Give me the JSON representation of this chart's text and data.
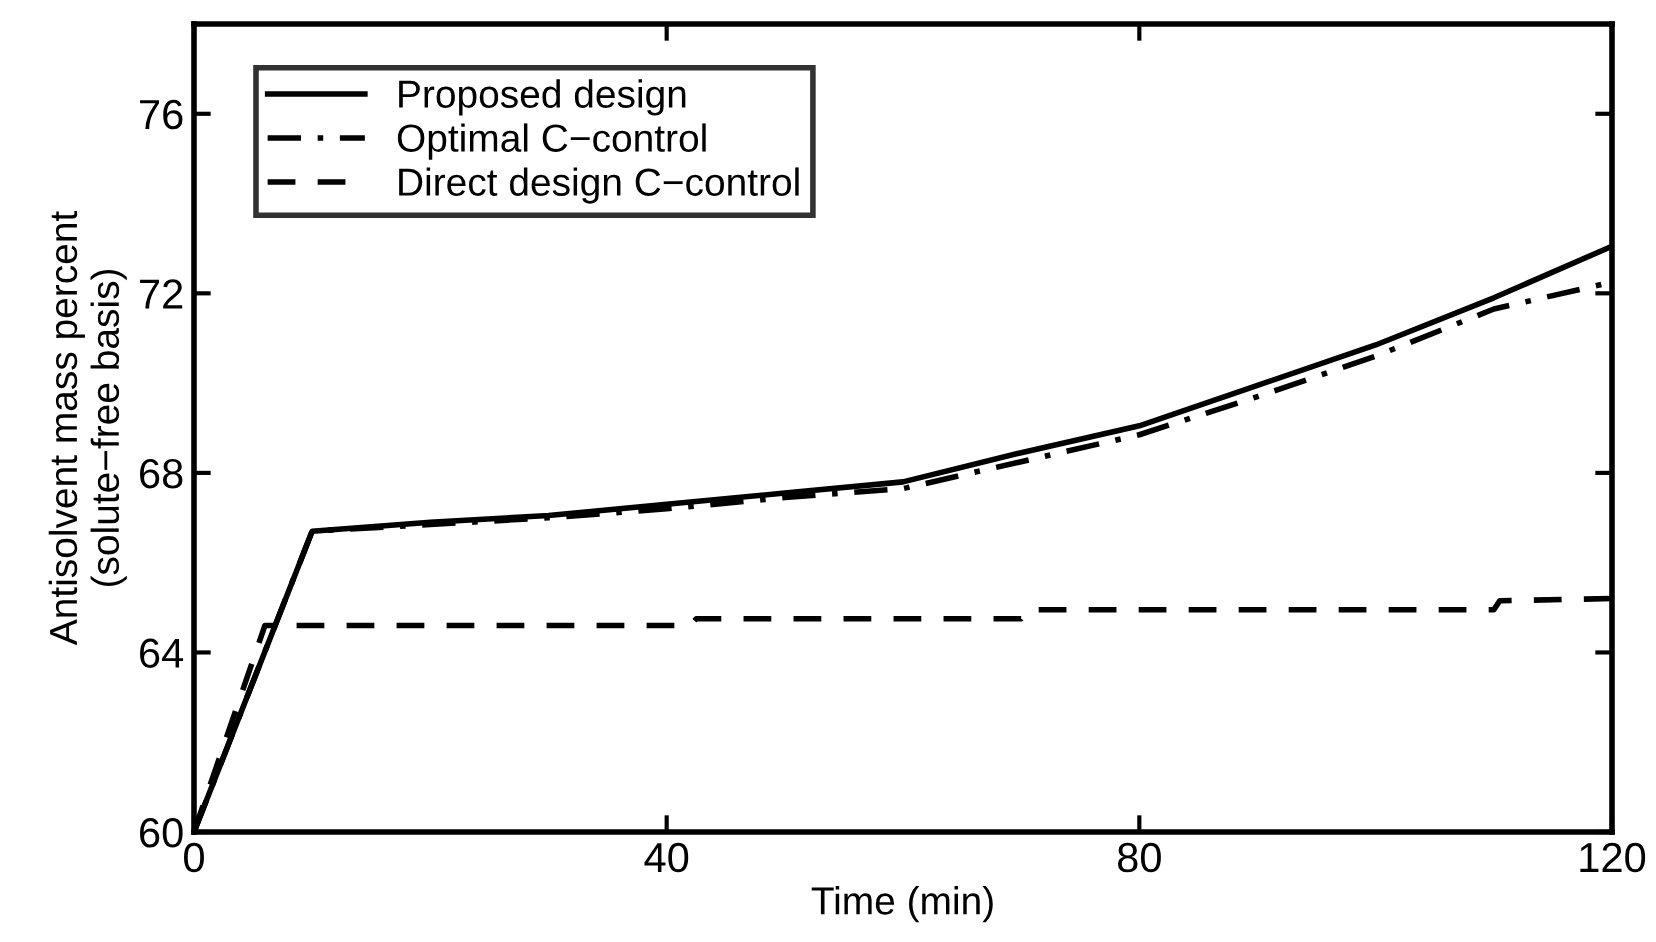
{
  "chart_data": {
    "type": "line",
    "xlabel": "Time (min)",
    "ylabel": "Antisolvent mass percent\n(solute−free basis)",
    "xlim": [
      0,
      120
    ],
    "ylim": [
      60,
      78
    ],
    "xticks": [
      0,
      40,
      80,
      120
    ],
    "yticks": [
      60,
      64,
      68,
      72,
      76
    ],
    "grid": false,
    "legend": "top left",
    "marker": "none",
    "series": [
      {
        "name": "Proposed design",
        "color": "#000000",
        "line_style": "solid",
        "x": [
          0,
          10,
          20,
          30,
          40,
          50,
          60,
          70,
          80,
          90,
          100,
          110,
          120
        ],
        "values": [
          60,
          66.7,
          66.9,
          67.05,
          67.3,
          67.55,
          67.8,
          68.45,
          69.05,
          69.95,
          70.85,
          71.9,
          73.05
        ]
      },
      {
        "name": "Optimal C−control",
        "color": "#000000",
        "line_style": "dashdot",
        "x": [
          0,
          10,
          20,
          30,
          40,
          50,
          60,
          70,
          80,
          90,
          100,
          110,
          120
        ],
        "values": [
          60,
          66.7,
          66.85,
          67.0,
          67.2,
          67.45,
          67.65,
          68.25,
          68.85,
          69.7,
          70.6,
          71.65,
          72.25
        ]
      },
      {
        "name": "Direct design C−control",
        "color": "#000000",
        "line_style": "dashed",
        "x": [
          0,
          6,
          42,
          42.5,
          70,
          70.5,
          110,
          110.5,
          120
        ],
        "values": [
          60,
          64.6,
          64.6,
          64.75,
          64.75,
          64.95,
          64.95,
          65.15,
          65.2
        ]
      }
    ]
  }
}
